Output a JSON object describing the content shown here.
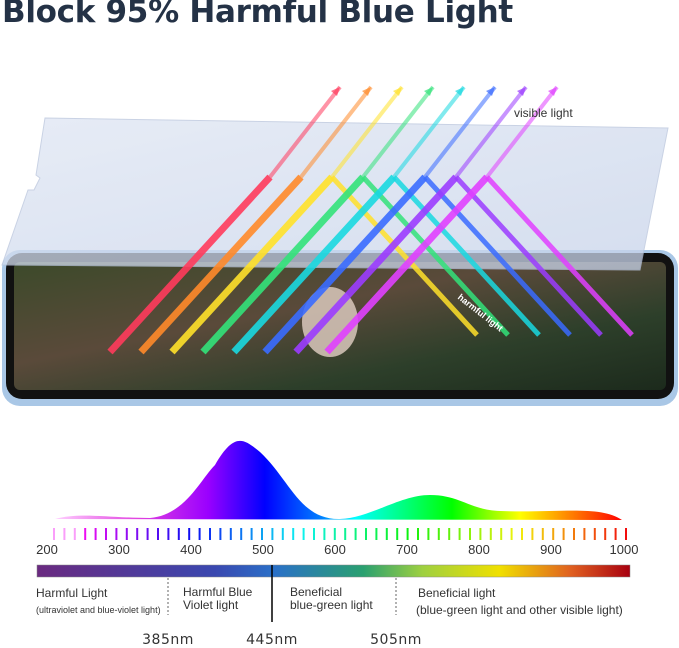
{
  "title": "Block 95% Harmful Blue Light",
  "illustration": {
    "visible_light_label": "visible light",
    "harmful_light_label": "harmful light",
    "ray_colors": [
      "#ff3b5c",
      "#ff8a2a",
      "#ffe12a",
      "#33e27a",
      "#19d8e0",
      "#3a6bff",
      "#9b3cff",
      "#e040ff"
    ]
  },
  "spectrum": {
    "axis_ticks": [
      "200",
      "300",
      "400",
      "500",
      "600",
      "700",
      "800",
      "900",
      "1000"
    ],
    "regions": [
      {
        "title": "Harmful Light",
        "subtitle": "(ultraviolet and blue-violet light)"
      },
      {
        "title": "Harmful Blue\nViolet light",
        "subtitle": ""
      },
      {
        "title": "Beneficial\nblue-green light",
        "subtitle": ""
      },
      {
        "title": "Beneficial light",
        "subtitle": "(blue-green light and other visible light)"
      }
    ],
    "boundaries": [
      "385nm",
      "445nm",
      "505nm"
    ]
  }
}
